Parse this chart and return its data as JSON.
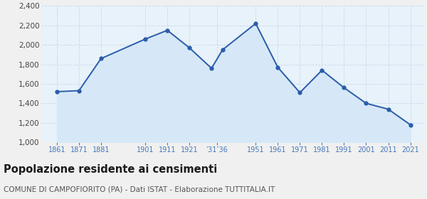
{
  "years": [
    1861,
    1871,
    1881,
    1901,
    1911,
    1921,
    1931,
    1936,
    1951,
    1961,
    1971,
    1981,
    1991,
    2001,
    2011,
    2021
  ],
  "values": [
    1520,
    1530,
    1860,
    2060,
    2150,
    1970,
    1760,
    1950,
    2220,
    1770,
    1510,
    1740,
    1560,
    1400,
    1340,
    1180
  ],
  "tick_labels": [
    "1861",
    "1871",
    "1881",
    "1901",
    "1911",
    "1921",
    "’31’36",
    "1951",
    "1961",
    "1971",
    "1981",
    "1991",
    "2001",
    "2011",
    "2021"
  ],
  "tick_positions": [
    1861,
    1871,
    1881,
    1901,
    1911,
    1921,
    1933.5,
    1951,
    1961,
    1971,
    1981,
    1991,
    2001,
    2011,
    2021
  ],
  "ylim": [
    1000,
    2400
  ],
  "yticks": [
    1000,
    1200,
    1400,
    1600,
    1800,
    2000,
    2200,
    2400
  ],
  "xlim": [
    1854,
    2027
  ],
  "line_color": "#2a5caa",
  "fill_color": "#d6e8f7",
  "marker_color": "#2a5caa",
  "grid_color": "#c8d8e8",
  "title": "Popolazione residente ai censimenti",
  "subtitle": "COMUNE DI CAMPOFIORITO (PA) - Dati ISTAT - Elaborazione TUTTITALIA.IT",
  "title_fontsize": 10.5,
  "subtitle_fontsize": 7.5,
  "background_color": "#f0f0f0",
  "plot_bg_color": "#e8f2fa"
}
